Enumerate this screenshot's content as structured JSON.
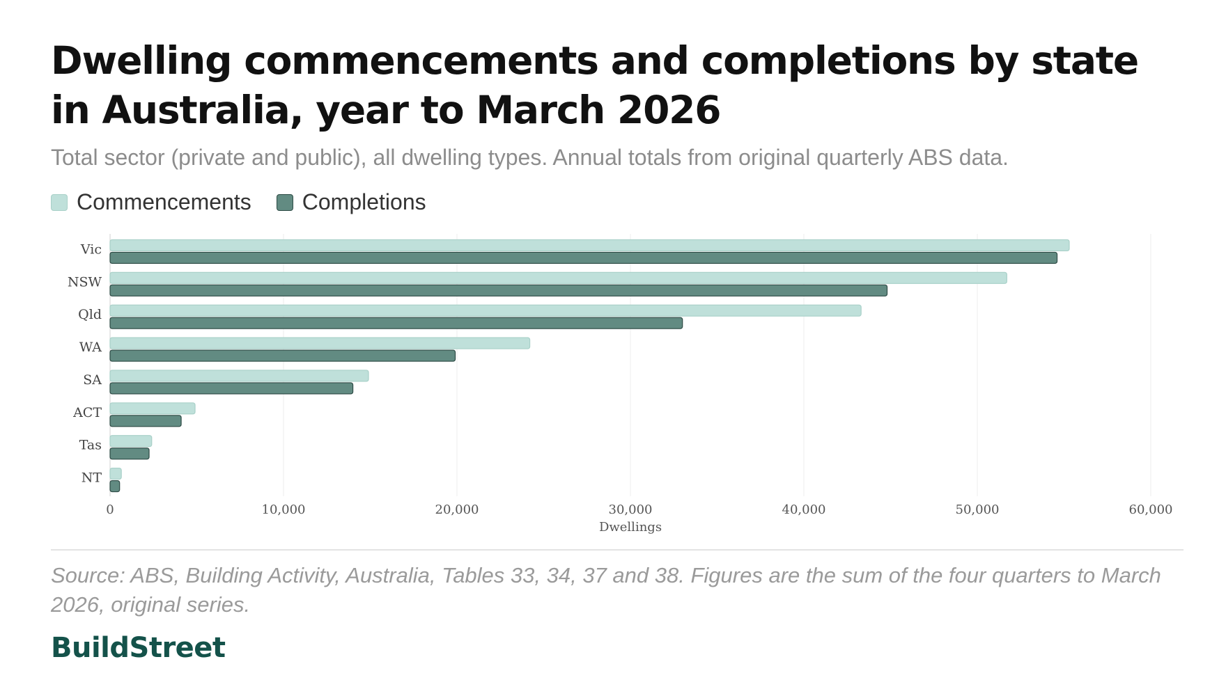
{
  "title": "Dwelling commencements and completions by state in Australia, year to March 2026",
  "subtitle": "Total sector (private and public), all dwelling types. Annual totals from original quarterly ABS data.",
  "legend": {
    "commencements": "Commencements",
    "completions": "Completions"
  },
  "colors": {
    "commencements": "#bfe0da",
    "completions": "#628b82",
    "commencements_border": "#a8d0c8",
    "completions_border": "#2c4a44"
  },
  "source": "Source: ABS, Building Activity, Australia, Tables 33, 34, 37 and 38. Figures are the sum of the four quarters to March 2026, original series.",
  "brand": "BuildStreet",
  "chart_data": {
    "type": "bar",
    "orientation": "horizontal",
    "title": "Dwelling commencements and completions by state in Australia, year to March 2026",
    "xlabel": "Dwellings",
    "ylabel": "",
    "categories": [
      "Vic",
      "NSW",
      "Qld",
      "WA",
      "SA",
      "ACT",
      "Tas",
      "NT"
    ],
    "series": [
      {
        "name": "Commencements",
        "values": [
          55300,
          51700,
          43300,
          24200,
          14900,
          4900,
          2400,
          650
        ]
      },
      {
        "name": "Completions",
        "values": [
          54600,
          44800,
          33000,
          19900,
          14000,
          4100,
          2250,
          550
        ]
      }
    ],
    "xlim": [
      0,
      60000
    ],
    "xticks": [
      0,
      10000,
      20000,
      30000,
      40000,
      50000,
      60000
    ],
    "xtick_labels": [
      "0",
      "10,000",
      "20,000",
      "30,000",
      "40,000",
      "50,000",
      "60,000"
    ],
    "grid": "vertical",
    "legend_position": "top-left"
  }
}
